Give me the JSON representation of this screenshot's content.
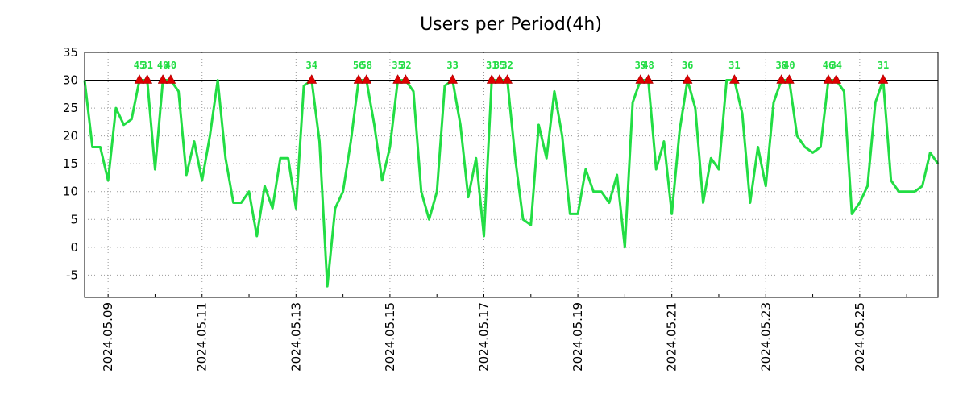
{
  "chart_data": {
    "type": "line",
    "title": "Users per Period(4h)",
    "xlabel": "",
    "ylabel": "",
    "ylim": [
      -9,
      35
    ],
    "y_ticks": [
      35,
      30,
      25,
      20,
      15,
      10,
      5,
      0,
      -5
    ],
    "x_tick_labels": [
      "2024.05.09",
      "2024.05.11",
      "2024.05.13",
      "2024.05.15",
      "2024.05.17",
      "2024.05.19",
      "2024.05.21",
      "2024.05.23",
      "2024.05.25"
    ],
    "threshold": 30,
    "grid": true,
    "line_color": "#22dd44",
    "marker_color": "#dd0000",
    "values": [
      30,
      18,
      18,
      12,
      25,
      22,
      23,
      30,
      30,
      14,
      30,
      30,
      28,
      13,
      19,
      12,
      20,
      30,
      16,
      8,
      8,
      10,
      2,
      11,
      7,
      16,
      16,
      7,
      29,
      30,
      19,
      -7,
      7,
      10,
      19,
      30,
      30,
      22,
      12,
      18,
      30,
      30,
      28,
      10,
      5,
      10,
      29,
      30,
      22,
      9,
      16,
      2,
      30,
      30,
      30,
      16,
      5,
      4,
      22,
      16,
      28,
      20,
      6,
      6,
      14,
      10,
      10,
      8,
      13,
      0,
      26,
      30,
      30,
      14,
      19,
      6,
      21,
      30,
      25,
      8,
      16,
      14,
      30,
      30,
      24,
      8,
      18,
      11,
      26,
      30,
      30,
      20,
      18,
      17,
      18,
      30,
      30,
      28,
      6,
      8,
      11,
      26,
      30,
      12,
      10,
      10,
      10,
      11,
      17,
      15
    ],
    "peaks": [
      {
        "index": 7,
        "label": "45"
      },
      {
        "index": 8,
        "label": "31"
      },
      {
        "index": 10,
        "label": "40"
      },
      {
        "index": 11,
        "label": "40"
      },
      {
        "index": 29,
        "label": "34"
      },
      {
        "index": 35,
        "label": "56"
      },
      {
        "index": 36,
        "label": "58"
      },
      {
        "index": 40,
        "label": "35"
      },
      {
        "index": 41,
        "label": "32"
      },
      {
        "index": 47,
        "label": "33"
      },
      {
        "index": 52,
        "label": "31"
      },
      {
        "index": 53,
        "label": "35"
      },
      {
        "index": 54,
        "label": "32"
      },
      {
        "index": 71,
        "label": "39"
      },
      {
        "index": 72,
        "label": "48"
      },
      {
        "index": 77,
        "label": "36"
      },
      {
        "index": 83,
        "label": "31"
      },
      {
        "index": 89,
        "label": "38"
      },
      {
        "index": 90,
        "label": "40"
      },
      {
        "index": 95,
        "label": "46"
      },
      {
        "index": 96,
        "label": "34"
      },
      {
        "index": 102,
        "label": "31"
      }
    ]
  }
}
